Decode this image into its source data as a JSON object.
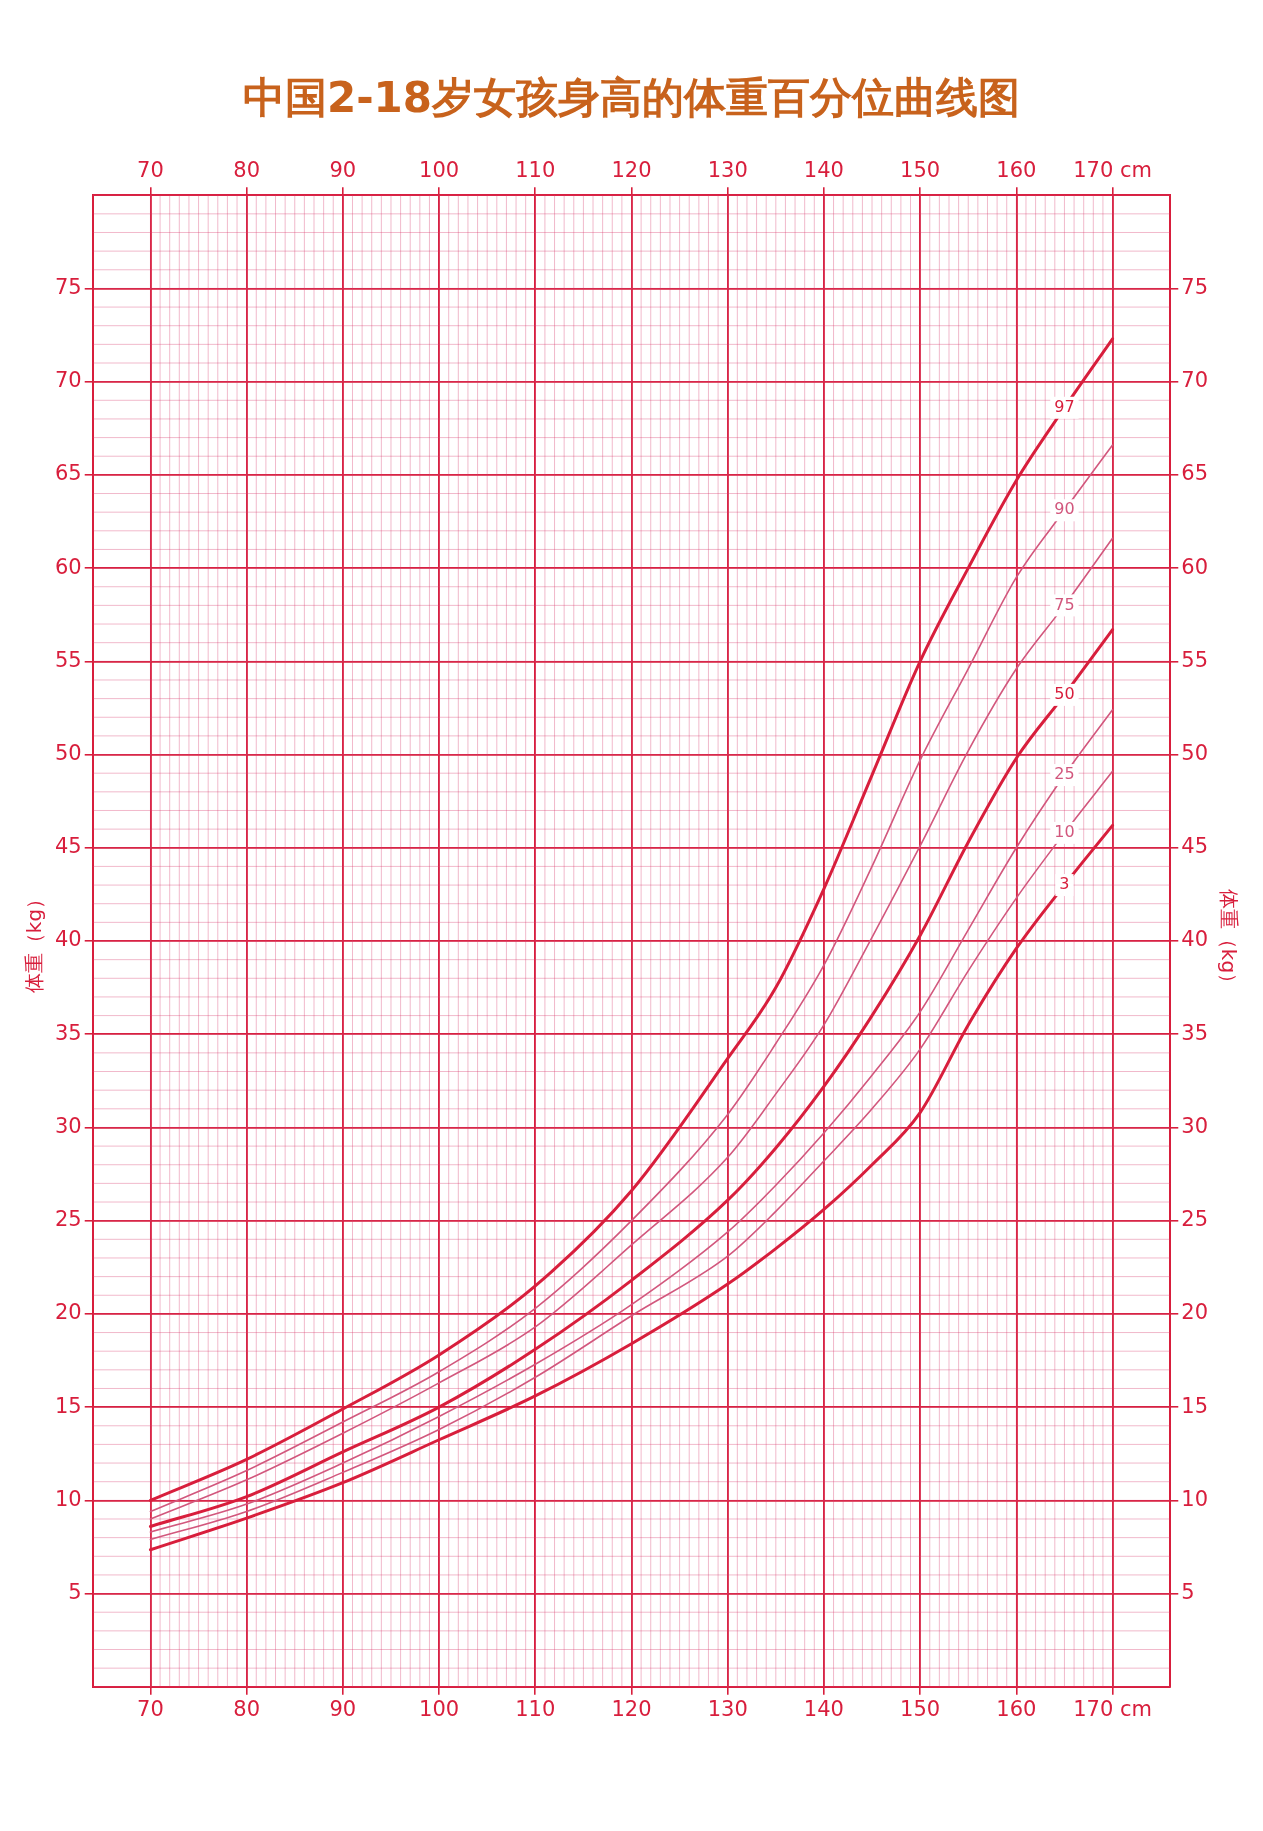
{
  "chart_data": {
    "type": "line",
    "title": "中国2-18岁女孩身高的体重百分位曲线图",
    "ylabel": "体重（kg）",
    "y2label": "体重（kg）",
    "x": [
      70,
      80,
      90,
      100,
      110,
      120,
      130,
      135,
      140,
      145,
      150,
      155,
      160,
      165,
      170
    ],
    "series": [
      {
        "name": "97",
        "color": "#d81e3c",
        "values": [
          10.0,
          12.2,
          14.9,
          17.8,
          21.5,
          26.6,
          33.7,
          37.5,
          42.8,
          48.9,
          55.0,
          60.0,
          64.7,
          68.6,
          72.3
        ]
      },
      {
        "name": "90",
        "color": "#d2577d",
        "values": [
          9.4,
          11.6,
          14.2,
          16.9,
          20.3,
          25.0,
          30.7,
          34.5,
          38.7,
          44.0,
          49.7,
          54.6,
          59.5,
          63.1,
          66.6
        ]
      },
      {
        "name": "75",
        "color": "#d2577d",
        "values": [
          9.0,
          11.1,
          13.6,
          16.3,
          19.3,
          23.7,
          28.4,
          31.8,
          35.5,
          40.2,
          45.1,
          50.2,
          54.6,
          58.0,
          61.6
        ]
      },
      {
        "name": "50",
        "color": "#d81e3c",
        "values": [
          8.6,
          10.2,
          12.6,
          15.0,
          18.1,
          21.8,
          26.1,
          28.9,
          32.2,
          36.0,
          40.3,
          45.3,
          49.8,
          53.2,
          56.7
        ]
      },
      {
        "name": "25",
        "color": "#d2577d",
        "values": [
          8.3,
          9.8,
          12.0,
          14.5,
          17.3,
          20.5,
          24.4,
          26.9,
          29.7,
          32.8,
          36.2,
          40.6,
          45.0,
          48.9,
          52.4
        ]
      },
      {
        "name": "10",
        "color": "#d2577d",
        "values": [
          7.9,
          9.4,
          11.5,
          13.8,
          16.6,
          19.9,
          23.1,
          25.5,
          28.2,
          31.0,
          34.2,
          38.4,
          42.3,
          45.8,
          49.1
        ]
      },
      {
        "name": "3",
        "color": "#d81e3c",
        "values": [
          7.35,
          9.05,
          10.95,
          13.25,
          15.6,
          18.4,
          21.6,
          23.5,
          25.6,
          28.0,
          30.8,
          35.5,
          39.6,
          43.0,
          46.2
        ]
      }
    ],
    "xlim": [
      64,
      176
    ],
    "xticks": [
      70,
      80,
      90,
      100,
      110,
      120,
      130,
      140,
      150,
      160,
      {
        "value": 170,
        "label": "170 cm"
      }
    ],
    "x2lim": [
      64,
      176
    ],
    "x2ticks": [
      70,
      80,
      90,
      100,
      110,
      120,
      130,
      140,
      150,
      160,
      {
        "value": 170,
        "label": "170 cm"
      }
    ],
    "ylim": [
      0,
      80
    ],
    "yticks": [
      5,
      10,
      15,
      20,
      25,
      30,
      35,
      40,
      45,
      50,
      55,
      60,
      65,
      70,
      75
    ],
    "y2lim": [
      0,
      80
    ],
    "y2ticks": [
      5,
      10,
      15,
      20,
      25,
      30,
      35,
      40,
      45,
      50,
      55,
      60,
      65,
      70,
      75
    ],
    "grid": true,
    "marker": "none",
    "line_style": "solid"
  }
}
